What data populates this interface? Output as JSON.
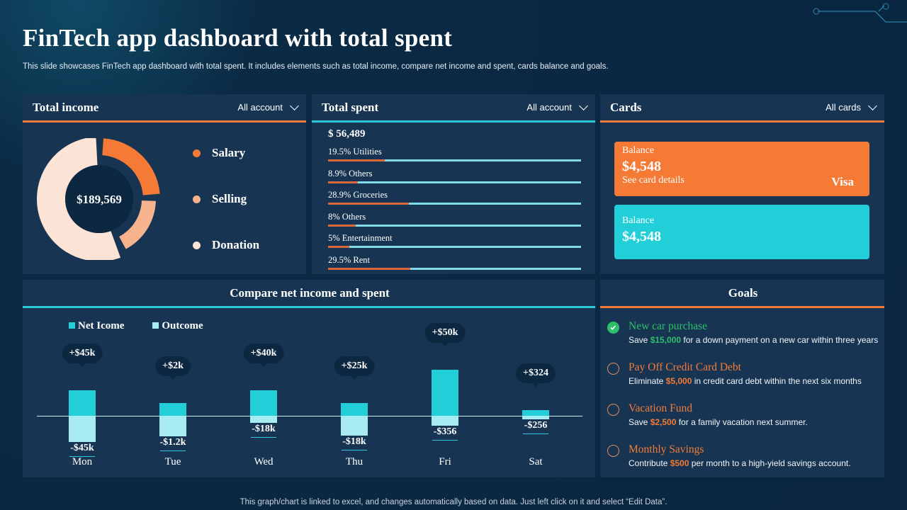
{
  "header": {
    "title": "FinTech app dashboard with total spent",
    "subtitle": "This slide showcases FinTech app dashboard with total spent. It includes elements such as total income, compare net income and spent, cards balance and goals."
  },
  "income": {
    "title": "Total income",
    "filter": "All account",
    "total": "$189,569",
    "legend": [
      {
        "label": "Salary",
        "color": "#f47a36"
      },
      {
        "label": "Selling",
        "color": "#f7b48c"
      },
      {
        "label": "Donation",
        "color": "#fbe3d6"
      }
    ]
  },
  "spent": {
    "title": "Total spent",
    "filter": "All account",
    "total": "$ 56,489",
    "items": [
      {
        "label": "19.5%  Utilities",
        "pct": 19.5
      },
      {
        "label": "8.9% Others",
        "pct": 8.9
      },
      {
        "label": "28.9% Groceries",
        "pct": 28.9
      },
      {
        "label": "8% Others",
        "pct": 8
      },
      {
        "label": "5% Entertainment",
        "pct": 5
      },
      {
        "label": "29.5% Rent",
        "pct": 29.5
      }
    ]
  },
  "cards": {
    "title": "Cards",
    "filter": "All cards",
    "card1": {
      "label": "Balance",
      "amount": "$4,548",
      "link": "See card details",
      "brand": "Visa",
      "color": "#f47a36"
    },
    "card2": {
      "label": "Balance",
      "amount": "$4,548",
      "color": "#22cfd9"
    }
  },
  "chart_data": {
    "type": "bar",
    "title": "Compare net income and spent",
    "categories": [
      "Mon",
      "Tue",
      "Wed",
      "Thu",
      "Fri",
      "Sat"
    ],
    "series": [
      {
        "name": "Net Icome",
        "color": "#22cfd9",
        "labels": [
          "+$45k",
          "+$2k",
          "+$40k",
          "+$25k",
          "+$50k",
          "+$324"
        ]
      },
      {
        "name": "Outcome",
        "color": "#a8ecf2",
        "labels": [
          "-$45k",
          "-$1.2k",
          "-$18k",
          "-$18k",
          "-$356",
          "-$256"
        ]
      }
    ]
  },
  "goals": {
    "title": "Goals",
    "items": [
      {
        "title": "New car purchase",
        "pre": "Save ",
        "amount": "$15,000",
        "post": " for a down payment on a new car within three years",
        "done": true
      },
      {
        "title": "Pay Off Credit Card Debt",
        "pre": "Eliminate ",
        "amount": "$5,000",
        "post": " in credit card debt within the next six  months",
        "done": false
      },
      {
        "title": "Vacation Fund",
        "pre": "Save ",
        "amount": "$2,500",
        "post": " for a family vacation next summer.",
        "done": false
      },
      {
        "title": "Monthly Savings",
        "pre": "Contribute ",
        "amount": "$500",
        "post": " per month to a high-yield savings account.",
        "done": false
      }
    ]
  },
  "footer": "This graph/chart is linked to excel, and changes automatically based on data. Just left click on it and select “Edit Data”."
}
